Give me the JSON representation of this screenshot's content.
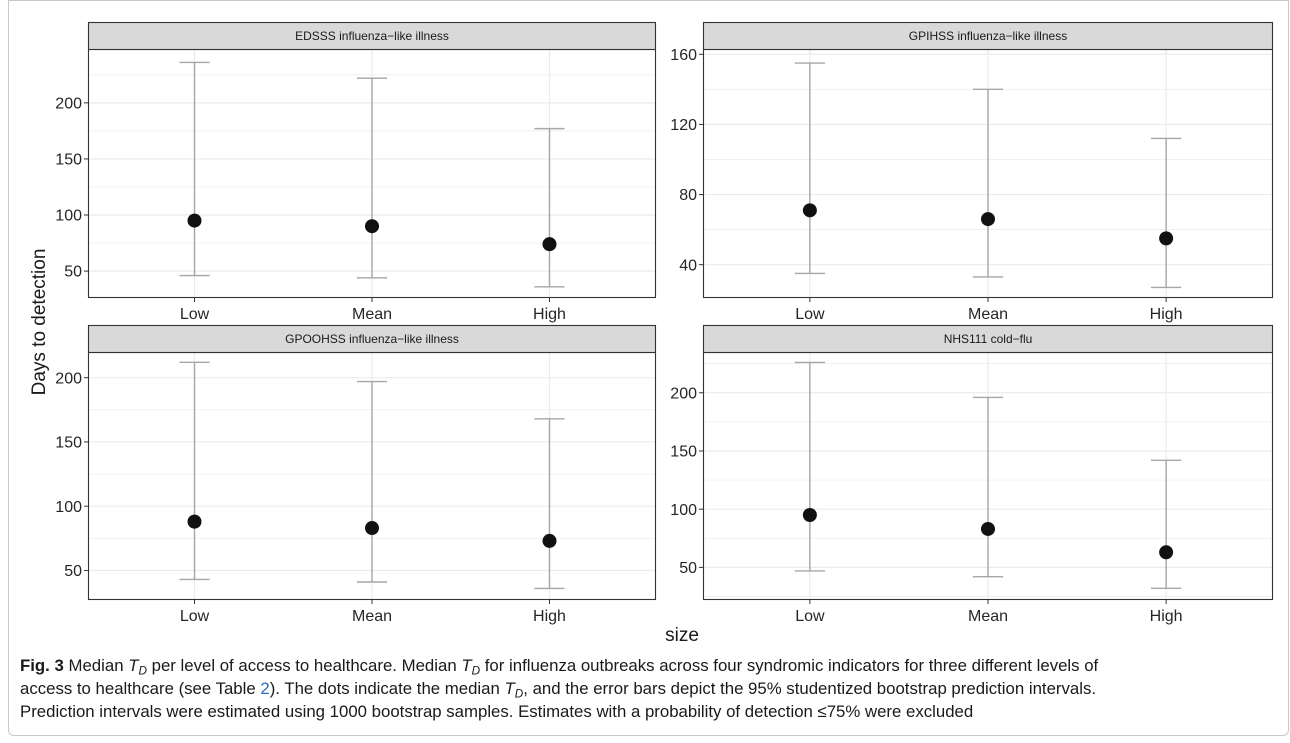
{
  "colors": {
    "point": "#111111",
    "errorbar": "#a6a6a6",
    "strip_fill": "#d9d9d9",
    "panel_border": "#333333",
    "grid": "#ebebeb",
    "link": "#2a6db5",
    "frame": "#c8c8c8"
  },
  "chart_data": {
    "type": "scatter",
    "xlabel": "size",
    "ylabel": "Days to detection",
    "categories": [
      "Low",
      "Mean",
      "High"
    ],
    "grid": true,
    "panels": [
      {
        "title": "EDSSS influenza−like illness",
        "values": [
          95,
          90,
          74
        ],
        "lower": [
          46,
          44,
          36
        ],
        "upper": [
          236,
          222,
          177
        ],
        "yticks": [
          50,
          100,
          150,
          200
        ],
        "ylim": [
          26,
          248
        ]
      },
      {
        "title": "GPIHSS influenza−like illness",
        "values": [
          71,
          66,
          55
        ],
        "lower": [
          35,
          33,
          27
        ],
        "upper": [
          155,
          140,
          112
        ],
        "yticks": [
          40,
          80,
          120,
          160
        ],
        "ylim": [
          21,
          163
        ]
      },
      {
        "title": "GPOOHSS influenza−like illness",
        "values": [
          88,
          83,
          73
        ],
        "lower": [
          43,
          41,
          36
        ],
        "upper": [
          212,
          197,
          168
        ],
        "yticks": [
          50,
          100,
          150,
          200
        ],
        "ylim": [
          27,
          220
        ]
      },
      {
        "title": "NHS111 cold−flu",
        "values": [
          95,
          83,
          63
        ],
        "lower": [
          47,
          42,
          32
        ],
        "upper": [
          226,
          196,
          142
        ],
        "yticks": [
          50,
          100,
          150,
          200
        ],
        "ylim": [
          22,
          235
        ]
      }
    ]
  },
  "caption": {
    "lines": [
      [
        {
          "bold": "Fig. 3"
        },
        {
          "text": " Median "
        },
        {
          "italic": "T"
        },
        {
          "sub": "D"
        },
        {
          "text": " per level of access to healthcare. Median "
        },
        {
          "italic": "T"
        },
        {
          "sub": "D"
        },
        {
          "text": " for influenza outbreaks across four syndromic indicators for three different levels of"
        }
      ],
      [
        {
          "text": "access to healthcare (see Table "
        },
        {
          "link": "2"
        },
        {
          "text": "). The dots indicate the median "
        },
        {
          "italic": "T"
        },
        {
          "sub": "D"
        },
        {
          "text": ", and the error bars depict the 95% studentized bootstrap prediction intervals."
        }
      ],
      [
        {
          "text": "Prediction intervals were estimated using 1000 bootstrap samples. Estimates with a probability of detection ≤75% were excluded"
        }
      ]
    ]
  }
}
